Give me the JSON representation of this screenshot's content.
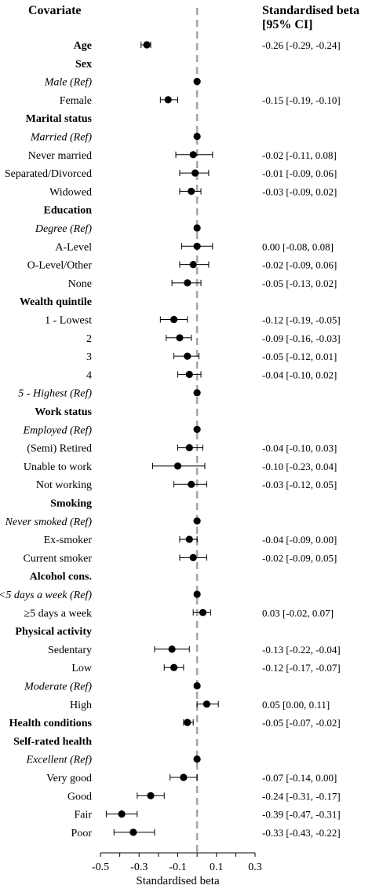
{
  "chart_data": {
    "type": "forest",
    "header_covariate": "Covariate",
    "header_ci_line1": "Standardised beta",
    "header_ci_line2": "[95% CI]",
    "xlabel": "Standardised beta",
    "xlim": [
      -0.5,
      0.3
    ],
    "xticks": [
      "-0.5",
      "-0.3",
      "-0.1",
      "0.1",
      "0.3"
    ],
    "xtick_values": [
      -0.5,
      -0.3,
      -0.1,
      0.1,
      0.3
    ],
    "reference_line": 0,
    "rows": [
      {
        "label": "Age",
        "kind": "heading",
        "beta": -0.26,
        "lo": -0.29,
        "hi": -0.24,
        "ci_text": "-0.26 [-0.29, -0.24]"
      },
      {
        "label": "Sex",
        "kind": "heading"
      },
      {
        "label": "Male (Ref)",
        "kind": "ref",
        "beta": 0
      },
      {
        "label": "Female",
        "kind": "level",
        "beta": -0.15,
        "lo": -0.19,
        "hi": -0.1,
        "ci_text": "-0.15 [-0.19, -0.10]"
      },
      {
        "label": "Marital status",
        "kind": "heading"
      },
      {
        "label": "Married (Ref)",
        "kind": "ref",
        "beta": 0
      },
      {
        "label": "Never married",
        "kind": "level",
        "beta": -0.02,
        "lo": -0.11,
        "hi": 0.08,
        "ci_text": "-0.02 [-0.11, 0.08]"
      },
      {
        "label": "Separated/Divorced",
        "kind": "level",
        "beta": -0.01,
        "lo": -0.09,
        "hi": 0.06,
        "ci_text": "-0.01 [-0.09, 0.06]"
      },
      {
        "label": "Widowed",
        "kind": "level",
        "beta": -0.03,
        "lo": -0.09,
        "hi": 0.02,
        "ci_text": "-0.03 [-0.09, 0.02]"
      },
      {
        "label": "Education",
        "kind": "heading"
      },
      {
        "label": "Degree (Ref)",
        "kind": "ref",
        "beta": 0
      },
      {
        "label": "A-Level",
        "kind": "level",
        "beta": 0.0,
        "lo": -0.08,
        "hi": 0.08,
        "ci_text": "0.00 [-0.08, 0.08]"
      },
      {
        "label": "O-Level/Other",
        "kind": "level",
        "beta": -0.02,
        "lo": -0.09,
        "hi": 0.06,
        "ci_text": "-0.02 [-0.09, 0.06]"
      },
      {
        "label": "None",
        "kind": "level",
        "beta": -0.05,
        "lo": -0.13,
        "hi": 0.02,
        "ci_text": "-0.05 [-0.13, 0.02]"
      },
      {
        "label": "Wealth quintile",
        "kind": "heading"
      },
      {
        "label": "1 - Lowest",
        "kind": "level",
        "beta": -0.12,
        "lo": -0.19,
        "hi": -0.05,
        "ci_text": "-0.12 [-0.19, -0.05]"
      },
      {
        "label": "2",
        "kind": "level",
        "beta": -0.09,
        "lo": -0.16,
        "hi": -0.03,
        "ci_text": "-0.09 [-0.16, -0.03]"
      },
      {
        "label": "3",
        "kind": "level",
        "beta": -0.05,
        "lo": -0.12,
        "hi": 0.01,
        "ci_text": "-0.05 [-0.12, 0.01]"
      },
      {
        "label": "4",
        "kind": "level",
        "beta": -0.04,
        "lo": -0.1,
        "hi": 0.02,
        "ci_text": "-0.04 [-0.10, 0.02]"
      },
      {
        "label": "5 - Highest (Ref)",
        "kind": "ref",
        "beta": 0
      },
      {
        "label": "Work status",
        "kind": "heading"
      },
      {
        "label": "Employed (Ref)",
        "kind": "ref",
        "beta": 0
      },
      {
        "label": "(Semi) Retired",
        "kind": "level",
        "beta": -0.04,
        "lo": -0.1,
        "hi": 0.03,
        "ci_text": "-0.04 [-0.10, 0.03]"
      },
      {
        "label": "Unable to work",
        "kind": "level",
        "beta": -0.1,
        "lo": -0.23,
        "hi": 0.04,
        "ci_text": "-0.10 [-0.23, 0.04]"
      },
      {
        "label": "Not working",
        "kind": "level",
        "beta": -0.03,
        "lo": -0.12,
        "hi": 0.05,
        "ci_text": "-0.03 [-0.12, 0.05]"
      },
      {
        "label": "Smoking",
        "kind": "heading"
      },
      {
        "label": "Never smoked (Ref)",
        "kind": "ref",
        "beta": 0
      },
      {
        "label": "Ex-smoker",
        "kind": "level",
        "beta": -0.04,
        "lo": -0.09,
        "hi": 0.0,
        "ci_text": "-0.04 [-0.09, 0.00]"
      },
      {
        "label": "Current smoker",
        "kind": "level",
        "beta": -0.02,
        "lo": -0.09,
        "hi": 0.05,
        "ci_text": "-0.02 [-0.09, 0.05]"
      },
      {
        "label": "Alcohol cons.",
        "kind": "heading"
      },
      {
        "label": "<5 days a week (Ref)",
        "kind": "ref",
        "beta": 0
      },
      {
        "label": "≥5 days a week",
        "kind": "level",
        "beta": 0.03,
        "lo": -0.02,
        "hi": 0.07,
        "ci_text": "0.03 [-0.02, 0.07]"
      },
      {
        "label": "Physical activity",
        "kind": "heading"
      },
      {
        "label": "Sedentary",
        "kind": "level",
        "beta": -0.13,
        "lo": -0.22,
        "hi": -0.04,
        "ci_text": "-0.13 [-0.22, -0.04]"
      },
      {
        "label": "Low",
        "kind": "level",
        "beta": -0.12,
        "lo": -0.17,
        "hi": -0.07,
        "ci_text": "-0.12 [-0.17, -0.07]"
      },
      {
        "label": "Moderate (Ref)",
        "kind": "ref",
        "beta": 0
      },
      {
        "label": "High",
        "kind": "level",
        "beta": 0.05,
        "lo": 0.0,
        "hi": 0.11,
        "ci_text": "0.05 [0.00, 0.11]"
      },
      {
        "label": "Health conditions",
        "kind": "heading",
        "beta": -0.05,
        "lo": -0.07,
        "hi": -0.02,
        "ci_text": "-0.05 [-0.07, -0.02]"
      },
      {
        "label": "Self-rated health",
        "kind": "heading"
      },
      {
        "label": "Excellent (Ref)",
        "kind": "ref",
        "beta": 0
      },
      {
        "label": "Very good",
        "kind": "level",
        "beta": -0.07,
        "lo": -0.14,
        "hi": 0.0,
        "ci_text": "-0.07 [-0.14, 0.00]"
      },
      {
        "label": "Good",
        "kind": "level",
        "beta": -0.24,
        "lo": -0.31,
        "hi": -0.17,
        "ci_text": "-0.24 [-0.31, -0.17]"
      },
      {
        "label": "Fair",
        "kind": "level",
        "beta": -0.39,
        "lo": -0.47,
        "hi": -0.31,
        "ci_text": "-0.39 [-0.47, -0.31]"
      },
      {
        "label": "Poor",
        "kind": "level",
        "beta": -0.33,
        "lo": -0.43,
        "hi": -0.22,
        "ci_text": "-0.33 [-0.43, -0.22]"
      }
    ]
  }
}
